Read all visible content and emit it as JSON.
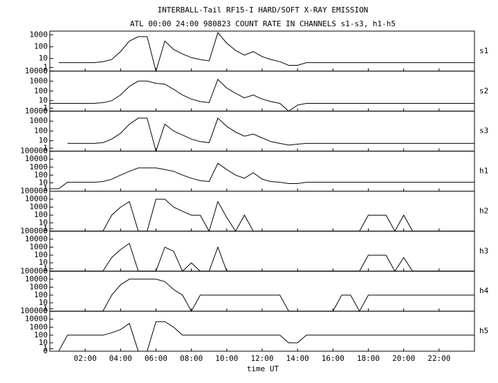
{
  "chart_data": {
    "type": "line",
    "title": "INTERBALL-Tail RF15-I HARD/SOFT X-RAY EMISSION",
    "subtitle": "ATL 00:00 24:00 980823  COUNT RATE IN CHANNELS s1-s3, h1-h5",
    "x_label": "time UT",
    "scale": "log1p",
    "xlim": [
      0,
      24
    ],
    "xticks": [
      {
        "value": 2,
        "label": "02:00"
      },
      {
        "value": 4,
        "label": "04:00"
      },
      {
        "value": 6,
        "label": "06:00"
      },
      {
        "value": 8,
        "label": "08:00"
      },
      {
        "value": 10,
        "label": "10:00"
      },
      {
        "value": 12,
        "label": "12:00"
      },
      {
        "value": 14,
        "label": "14:00"
      },
      {
        "value": 16,
        "label": "16:00"
      },
      {
        "value": 18,
        "label": "18:00"
      },
      {
        "value": 20,
        "label": "20:00"
      },
      {
        "value": 22,
        "label": "22:00"
      }
    ],
    "x": [
      0,
      0.5,
      1,
      1.5,
      2,
      2.5,
      3,
      3.5,
      4,
      4.5,
      5,
      5.5,
      6,
      6.5,
      7,
      7.5,
      8,
      8.5,
      9,
      9.5,
      10,
      10.5,
      11,
      11.5,
      12,
      12.5,
      13,
      13.5,
      14,
      14.5,
      15,
      15.5,
      16,
      16.5,
      17,
      17.5,
      18,
      18.5,
      19,
      19.5,
      20,
      20.5,
      21,
      21.5,
      22,
      22.5,
      23,
      23.5,
      24
    ],
    "series": [
      {
        "name": "s1",
        "color": "#000000",
        "ylim": [
          0,
          2000
        ],
        "yticks": [
          0,
          1,
          10,
          100,
          1000
        ],
        "values": [
          null,
          4,
          4,
          4,
          4,
          4,
          5,
          8,
          40,
          300,
          700,
          700,
          0,
          300,
          60,
          25,
          12,
          8,
          6,
          1500,
          200,
          50,
          20,
          40,
          15,
          8,
          5,
          2,
          2,
          4,
          4,
          4,
          4,
          4,
          4,
          4,
          4,
          4,
          4,
          4,
          4,
          4,
          4,
          4,
          4,
          4,
          4,
          4,
          4
        ]
      },
      {
        "name": "s2",
        "color": "#000000",
        "ylim": [
          0,
          10000
        ],
        "yticks": [
          0,
          1,
          10,
          100,
          1000,
          10000
        ],
        "values": [
          5,
          5,
          5,
          5,
          5,
          5,
          6,
          10,
          40,
          300,
          1000,
          1000,
          600,
          500,
          150,
          40,
          15,
          8,
          6,
          1500,
          200,
          60,
          20,
          40,
          15,
          8,
          5,
          0,
          3,
          5,
          5,
          5,
          5,
          5,
          5,
          5,
          5,
          5,
          5,
          5,
          5,
          5,
          5,
          5,
          5,
          5,
          5,
          5,
          5
        ]
      },
      {
        "name": "s3",
        "color": "#000000",
        "ylim": [
          0,
          10000
        ],
        "yticks": [
          0,
          1,
          10,
          100,
          1000,
          10000
        ],
        "values": [
          null,
          null,
          5,
          5,
          5,
          5,
          6,
          15,
          60,
          500,
          2000,
          2000,
          0,
          500,
          100,
          40,
          15,
          8,
          6,
          2000,
          300,
          80,
          30,
          50,
          20,
          8,
          5,
          3,
          4,
          5,
          5,
          5,
          5,
          5,
          5,
          5,
          5,
          5,
          5,
          5,
          5,
          5,
          5,
          5,
          5,
          5,
          5,
          5,
          5
        ]
      },
      {
        "name": "h1",
        "color": "#000000",
        "ylim": [
          0,
          100000
        ],
        "yticks": [
          1,
          10,
          100,
          1000,
          10000,
          100000
        ],
        "values": [
          1,
          1,
          12,
          12,
          12,
          12,
          15,
          30,
          100,
          300,
          800,
          800,
          800,
          500,
          300,
          100,
          40,
          20,
          15,
          3000,
          500,
          100,
          40,
          200,
          30,
          15,
          12,
          8,
          8,
          12,
          12,
          12,
          12,
          12,
          12,
          12,
          12,
          12,
          12,
          12,
          12,
          12,
          12,
          12,
          12,
          12,
          12,
          12,
          12
        ]
      },
      {
        "name": "h2",
        "color": "#000000",
        "ylim": [
          0,
          100000
        ],
        "yticks": [
          0,
          1,
          10,
          100,
          1000,
          10000,
          100000
        ],
        "values": [
          0,
          0,
          0,
          0,
          0,
          0,
          0,
          100,
          1000,
          5000,
          0,
          0,
          10000,
          10000,
          1000,
          300,
          100,
          100,
          0,
          5000,
          50,
          0,
          100,
          0,
          0,
          0,
          0,
          0,
          0,
          0,
          0,
          0,
          0,
          0,
          0,
          0,
          100,
          100,
          100,
          0,
          100,
          0,
          0,
          0,
          0,
          0,
          0,
          0,
          0
        ]
      },
      {
        "name": "h3",
        "color": "#000000",
        "ylim": [
          0,
          100000
        ],
        "yticks": [
          0,
          1,
          10,
          100,
          1000,
          10000,
          100000
        ],
        "values": [
          0,
          0,
          0,
          0,
          0,
          0,
          0,
          50,
          500,
          3000,
          0,
          0,
          0,
          1000,
          300,
          0,
          10,
          0,
          0,
          1000,
          0,
          0,
          0,
          0,
          0,
          0,
          0,
          0,
          0,
          0,
          0,
          0,
          0,
          0,
          0,
          0,
          100,
          100,
          100,
          0,
          50,
          0,
          0,
          0,
          0,
          0,
          0,
          0,
          0
        ]
      },
      {
        "name": "h4",
        "color": "#000000",
        "ylim": [
          0,
          100000
        ],
        "yticks": [
          0,
          1,
          10,
          100,
          1000,
          10000,
          100000
        ],
        "values": [
          0,
          0,
          0,
          0,
          0,
          0,
          0,
          100,
          2000,
          10000,
          10000,
          10000,
          10000,
          5000,
          500,
          100,
          0,
          100,
          100,
          100,
          100,
          100,
          100,
          100,
          100,
          100,
          100,
          0,
          0,
          0,
          0,
          0,
          0,
          100,
          100,
          0,
          100,
          100,
          100,
          100,
          100,
          100,
          100,
          100,
          100,
          100,
          100,
          100,
          100
        ]
      },
      {
        "name": "h5",
        "color": "#000000",
        "ylim": [
          0,
          100000
        ],
        "yticks": [
          0,
          1,
          10,
          100,
          1000,
          10000,
          100000
        ],
        "values": [
          0,
          0,
          100,
          100,
          100,
          100,
          100,
          200,
          500,
          3000,
          0,
          0,
          5000,
          5000,
          1000,
          100,
          100,
          100,
          100,
          100,
          100,
          100,
          100,
          100,
          100,
          100,
          100,
          10,
          10,
          100,
          100,
          100,
          100,
          100,
          100,
          100,
          100,
          100,
          100,
          100,
          100,
          100,
          100,
          100,
          100,
          100,
          100,
          100,
          100
        ]
      }
    ]
  }
}
